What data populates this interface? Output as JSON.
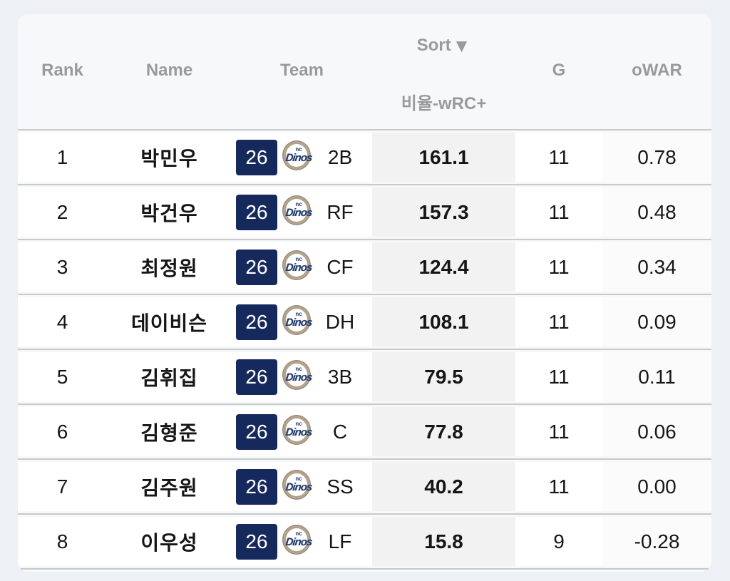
{
  "table": {
    "headers": {
      "rank": "Rank",
      "name": "Name",
      "team": "Team",
      "sort_label": "Sort",
      "sort_arrow": "▼",
      "metric_label": "비율-wRC+",
      "games": "G",
      "owar": "oWAR"
    },
    "team_logo": {
      "small_text": "nc",
      "word": "Dinos",
      "jersey_number": "26"
    },
    "rows": [
      {
        "rank": "1",
        "name": "박민우",
        "jersey": "26",
        "pos": "2B",
        "metric": "161.1",
        "g": "11",
        "owar": "0.78"
      },
      {
        "rank": "2",
        "name": "박건우",
        "jersey": "26",
        "pos": "RF",
        "metric": "157.3",
        "g": "11",
        "owar": "0.48"
      },
      {
        "rank": "3",
        "name": "최정원",
        "jersey": "26",
        "pos": "CF",
        "metric": "124.4",
        "g": "11",
        "owar": "0.34"
      },
      {
        "rank": "4",
        "name": "데이비슨",
        "jersey": "26",
        "pos": "DH",
        "metric": "108.1",
        "g": "11",
        "owar": "0.09"
      },
      {
        "rank": "5",
        "name": "김휘집",
        "jersey": "26",
        "pos": "3B",
        "metric": "79.5",
        "g": "11",
        "owar": "0.11"
      },
      {
        "rank": "6",
        "name": "김형준",
        "jersey": "26",
        "pos": "C",
        "metric": "77.8",
        "g": "11",
        "owar": "0.06"
      },
      {
        "rank": "7",
        "name": "김주원",
        "jersey": "26",
        "pos": "SS",
        "metric": "40.2",
        "g": "11",
        "owar": "0.00"
      },
      {
        "rank": "8",
        "name": "이우성",
        "jersey": "26",
        "pos": "LF",
        "metric": "15.8",
        "g": "9",
        "owar": "-0.28"
      }
    ]
  },
  "colors": {
    "page_background": "#edf0f4",
    "card_background": "#f7f8fa",
    "row_background": "#ffffff",
    "sorted_column_background": "#f2f2f2",
    "divider": "#c9c9c9",
    "header_text": "#9a9a9c",
    "jersey_badge_navy": "#16295c",
    "logo_ring_tan": "#b3a38c",
    "logo_text_navy": "#1e3a70"
  }
}
